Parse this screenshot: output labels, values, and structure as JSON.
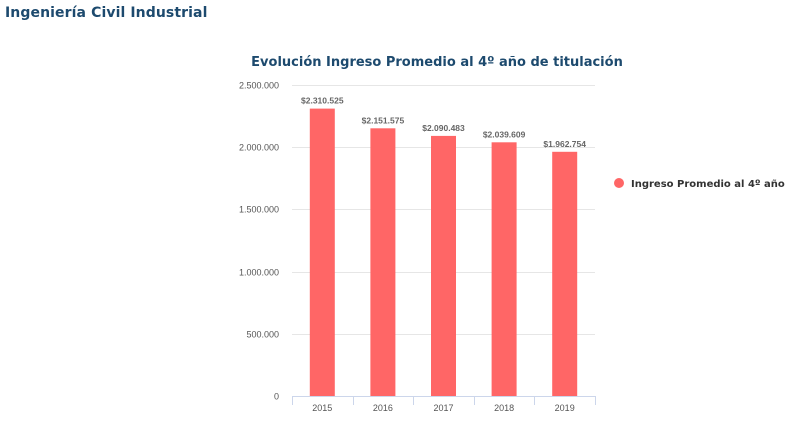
{
  "page": {
    "heading": "Ingeniería Civil Industrial"
  },
  "chart_data": {
    "type": "bar",
    "title": "Evolución Ingreso Promedio al 4º año de titulación",
    "categories": [
      "2015",
      "2016",
      "2017",
      "2018",
      "2019"
    ],
    "series": [
      {
        "name": "Ingreso Promedio al 4º año",
        "values": [
          2310525,
          2151575,
          2090483,
          2039609,
          1962754
        ],
        "labels": [
          "$2.310.525",
          "$2.151.575",
          "$2.090.483",
          "$2.039.609",
          "$1.962.754"
        ],
        "color": "#ff6666"
      }
    ],
    "y_ticks": [
      0,
      500000,
      1000000,
      1500000,
      2000000,
      2500000
    ],
    "y_tick_labels": [
      "0",
      "500.000",
      "1.000.000",
      "1.500.000",
      "2.000.000",
      "2.500.000"
    ],
    "ylim": [
      0,
      2500000
    ],
    "grid": true,
    "legend_position": "right",
    "xlabel": "",
    "ylabel": ""
  }
}
